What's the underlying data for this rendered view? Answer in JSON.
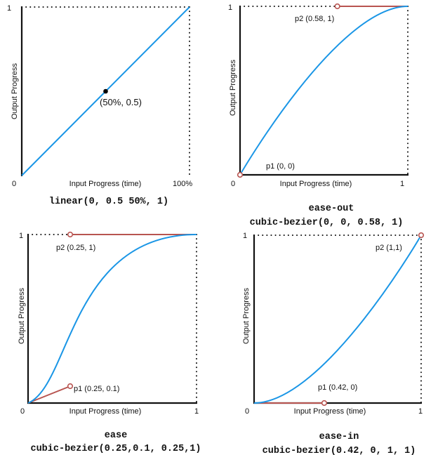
{
  "colors": {
    "curve": "#1a96e6",
    "handle": "#b85450",
    "axis": "#111111"
  },
  "axis_labels": {
    "x": "Input Progress (time)",
    "y": "Output Progress"
  },
  "panels": [
    {
      "id": "linear",
      "title": "",
      "function": "linear(0, 0.5 50%, 1)",
      "type": "linear",
      "points": [
        [
          0,
          0
        ],
        [
          0.5,
          0.5
        ],
        [
          1,
          1
        ]
      ],
      "tick_origin": "0",
      "tick_y_max": "1",
      "tick_x_max": "100%",
      "point_label": "(50%, 0.5)"
    },
    {
      "id": "ease-out",
      "title": "ease-out",
      "function": "cubic-bezier(0, 0, 0.58, 1)",
      "type": "cubic-bezier",
      "p1": [
        0,
        0
      ],
      "p2": [
        0.58,
        1
      ],
      "p1_label": "p1 (0, 0)",
      "p2_label": "p2 (0.58, 1)",
      "tick_origin": "0",
      "tick_y_max": "1",
      "tick_x_max": "1"
    },
    {
      "id": "ease",
      "title": "ease",
      "function": "cubic-bezier(0.25,0.1, 0.25,1)",
      "type": "cubic-bezier",
      "p1": [
        0.25,
        0.1
      ],
      "p2": [
        0.25,
        1
      ],
      "p1_label": "p1 (0.25, 0.1)",
      "p2_label": "p2 (0.25, 1)",
      "tick_origin": "0",
      "tick_y_max": "1",
      "tick_x_max": "1"
    },
    {
      "id": "ease-in",
      "title": "ease-in",
      "function": "cubic-bezier(0.42, 0, 1, 1)",
      "type": "cubic-bezier",
      "p1": [
        0.42,
        0
      ],
      "p2": [
        1,
        1
      ],
      "p1_label": "p1 (0.42, 0)",
      "p2_label": "p2 (1,1)",
      "tick_origin": "0",
      "tick_y_max": "1",
      "tick_x_max": "1"
    }
  ]
}
